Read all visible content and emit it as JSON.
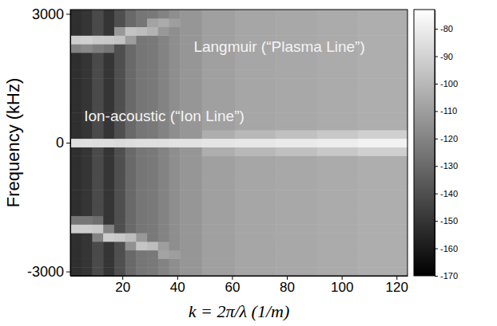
{
  "chart_data": {
    "type": "heatmap",
    "x_label": "k = 2π/λ  (1/m)",
    "y_label": "Frequency (kHz)",
    "xlim": [
      1,
      124
    ],
    "xticks": [
      20,
      40,
      60,
      80,
      100,
      120
    ],
    "ylim": [
      -3100,
      3100
    ],
    "yticks": [
      -3000,
      0,
      3000
    ],
    "x_edges": [
      1,
      5,
      9,
      13,
      17,
      21,
      25,
      29,
      33,
      37,
      41,
      49,
      61,
      76,
      91,
      106,
      124
    ],
    "y_edges": [
      -3100,
      -2900,
      -2700,
      -2500,
      -2300,
      -2100,
      -1900,
      -1700,
      -1500,
      -1300,
      -1100,
      -900,
      -700,
      -500,
      -300,
      -100,
      100,
      300,
      500,
      700,
      900,
      1100,
      1300,
      1500,
      1700,
      1900,
      2100,
      2300,
      2500,
      2700,
      2900,
      3100
    ],
    "z": [
      [
        -152,
        -150,
        -142,
        -150,
        -140,
        -130,
        -125,
        -124,
        -120,
        -116,
        -113,
        -109,
        -107,
        -106,
        -105,
        -104
      ],
      [
        -152,
        -150,
        -142,
        -150,
        -140,
        -130,
        -125,
        -124,
        -120,
        -116,
        -113,
        -109,
        -107,
        -106,
        -105,
        -104
      ],
      [
        -152,
        -150,
        -142,
        -150,
        -140,
        -130,
        -125,
        -124,
        -108,
        -110,
        -113,
        -109,
        -107,
        -106,
        -105,
        -104
      ],
      [
        -152,
        -150,
        -142,
        -150,
        -140,
        -115,
        -95,
        -98,
        -110,
        -116,
        -113,
        -109,
        -107,
        -106,
        -105,
        -104
      ],
      [
        -152,
        -150,
        -120,
        -92,
        -94,
        -98,
        -112,
        -124,
        -120,
        -116,
        -113,
        -109,
        -107,
        -106,
        -105,
        -104
      ],
      [
        -92,
        -92,
        -94,
        -120,
        -140,
        -130,
        -125,
        -124,
        -120,
        -116,
        -113,
        -109,
        -107,
        -106,
        -105,
        -104
      ],
      [
        -125,
        -125,
        -128,
        -150,
        -140,
        -130,
        -125,
        -124,
        -120,
        -116,
        -113,
        -109,
        -107,
        -106,
        -105,
        -104
      ],
      [
        -152,
        -150,
        -142,
        -150,
        -140,
        -130,
        -125,
        -124,
        -120,
        -116,
        -113,
        -109,
        -107,
        -106,
        -105,
        -104
      ],
      [
        -152,
        -150,
        -142,
        -150,
        -140,
        -130,
        -125,
        -124,
        -120,
        -116,
        -113,
        -109,
        -107,
        -106,
        -105,
        -104
      ],
      [
        -152,
        -150,
        -142,
        -150,
        -140,
        -130,
        -125,
        -124,
        -120,
        -116,
        -113,
        -109,
        -107,
        -106,
        -105,
        -104
      ],
      [
        -152,
        -150,
        -142,
        -150,
        -140,
        -130,
        -125,
        -124,
        -120,
        -116,
        -113,
        -109,
        -107,
        -106,
        -105,
        -104
      ],
      [
        -152,
        -150,
        -142,
        -150,
        -140,
        -130,
        -125,
        -124,
        -120,
        -116,
        -113,
        -109,
        -107,
        -106,
        -105,
        -104
      ],
      [
        -152,
        -150,
        -142,
        -150,
        -140,
        -130,
        -125,
        -124,
        -120,
        -116,
        -113,
        -109,
        -107,
        -106,
        -105,
        -104
      ],
      [
        -152,
        -150,
        -142,
        -150,
        -140,
        -130,
        -125,
        -124,
        -120,
        -116,
        -113,
        -109,
        -107,
        -106,
        -105,
        -104
      ],
      [
        -152,
        -150,
        -142,
        -150,
        -140,
        -130,
        -125,
        -124,
        -120,
        -116,
        -113,
        -104,
        -100,
        -97,
        -94,
        -91
      ],
      [
        -85,
        -85,
        -86,
        -86,
        -87,
        -86,
        -85,
        -85,
        -85,
        -84,
        -84,
        -83,
        -82,
        -81,
        -80,
        -78
      ],
      [
        -152,
        -150,
        -142,
        -150,
        -140,
        -130,
        -125,
        -124,
        -120,
        -116,
        -113,
        -104,
        -100,
        -97,
        -94,
        -91
      ],
      [
        -152,
        -150,
        -142,
        -150,
        -140,
        -130,
        -125,
        -124,
        -120,
        -116,
        -113,
        -109,
        -107,
        -106,
        -105,
        -104
      ],
      [
        -152,
        -150,
        -142,
        -150,
        -140,
        -130,
        -125,
        -124,
        -120,
        -116,
        -113,
        -109,
        -107,
        -106,
        -105,
        -104
      ],
      [
        -152,
        -150,
        -142,
        -150,
        -140,
        -130,
        -125,
        -124,
        -120,
        -116,
        -113,
        -109,
        -107,
        -106,
        -105,
        -104
      ],
      [
        -152,
        -150,
        -142,
        -150,
        -140,
        -130,
        -125,
        -124,
        -120,
        -116,
        -113,
        -109,
        -107,
        -106,
        -105,
        -104
      ],
      [
        -152,
        -150,
        -142,
        -150,
        -140,
        -130,
        -125,
        -124,
        -120,
        -116,
        -113,
        -109,
        -107,
        -106,
        -105,
        -104
      ],
      [
        -152,
        -150,
        -142,
        -150,
        -140,
        -130,
        -125,
        -124,
        -120,
        -116,
        -113,
        -109,
        -107,
        -106,
        -105,
        -104
      ],
      [
        -152,
        -150,
        -142,
        -150,
        -140,
        -130,
        -125,
        -124,
        -120,
        -116,
        -113,
        -109,
        -107,
        -106,
        -105,
        -104
      ],
      [
        -152,
        -150,
        -142,
        -150,
        -140,
        -130,
        -125,
        -124,
        -120,
        -116,
        -113,
        -109,
        -107,
        -106,
        -105,
        -104
      ],
      [
        -152,
        -150,
        -142,
        -150,
        -140,
        -130,
        -125,
        -124,
        -120,
        -116,
        -113,
        -109,
        -107,
        -106,
        -105,
        -104
      ],
      [
        -120,
        -118,
        -122,
        -125,
        -140,
        -130,
        -125,
        -124,
        -120,
        -116,
        -113,
        -109,
        -107,
        -106,
        -105,
        -104
      ],
      [
        -92,
        -91,
        -93,
        -94,
        -96,
        -110,
        -125,
        -124,
        -120,
        -116,
        -113,
        -109,
        -107,
        -106,
        -105,
        -104
      ],
      [
        -152,
        -150,
        -142,
        -150,
        -112,
        -96,
        -98,
        -102,
        -112,
        -116,
        -113,
        -109,
        -107,
        -106,
        -105,
        -104
      ],
      [
        -152,
        -150,
        -142,
        -150,
        -140,
        -130,
        -125,
        -108,
        -105,
        -110,
        -113,
        -109,
        -107,
        -106,
        -105,
        -104
      ],
      [
        -152,
        -150,
        -142,
        -150,
        -140,
        -130,
        -125,
        -124,
        -120,
        -116,
        -113,
        -109,
        -107,
        -106,
        -105,
        -104
      ]
    ],
    "colorbar": {
      "range": [
        -170,
        -73
      ],
      "ticks": [
        -80,
        -90,
        -100,
        -110,
        -120,
        -130,
        -140,
        -150,
        -160,
        -170
      ]
    },
    "annotations": [
      {
        "text": "Langmuir (“Plasma Line”)",
        "x": 46,
        "y": 2200
      },
      {
        "text": "Ion-acoustic (“Ion Line”)",
        "x": 6,
        "y": 600
      }
    ]
  }
}
